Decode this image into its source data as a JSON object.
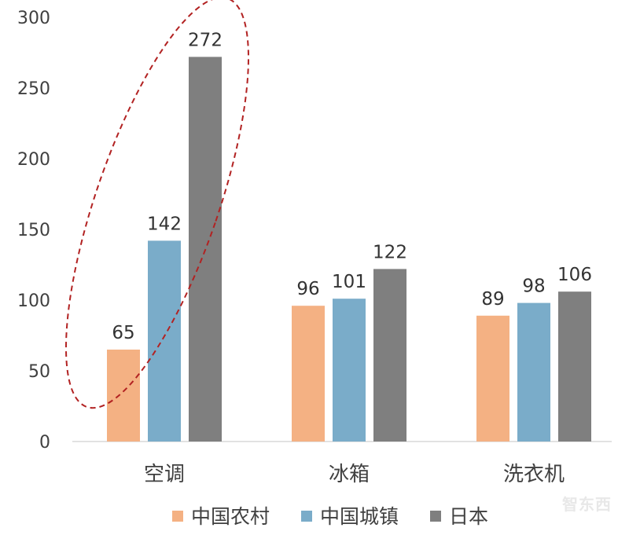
{
  "chart_data": {
    "type": "bar",
    "categories": [
      "空调",
      "冰箱",
      "洗衣机"
    ],
    "series": [
      {
        "name": "中国农村",
        "values": [
          65,
          96,
          89
        ],
        "color": "#f4b183"
      },
      {
        "name": "中国城镇",
        "values": [
          142,
          101,
          98
        ],
        "color": "#7aacc9"
      },
      {
        "name": "日本",
        "values": [
          272,
          122,
          106
        ],
        "color": "#7f7f7f"
      }
    ],
    "yticks": [
      0,
      50,
      100,
      150,
      200,
      250,
      300
    ],
    "ylim": [
      0,
      300
    ],
    "grid": false,
    "legend_position": "bottom",
    "annotation": {
      "type": "dashed-ellipse",
      "target_category": "空调",
      "color": "#b22222"
    }
  },
  "watermark": {
    "text": "智东西"
  }
}
